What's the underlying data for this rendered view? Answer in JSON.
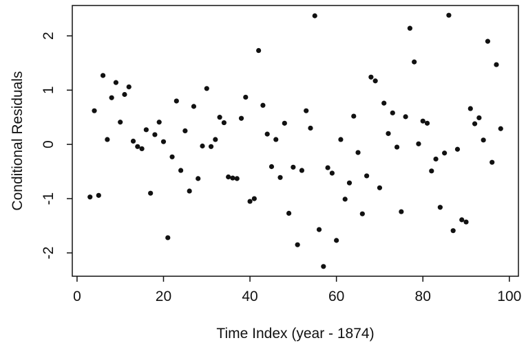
{
  "chart_data": {
    "type": "scatter",
    "xlabel": "Time Index (year - 1874)",
    "ylabel": "Conditional Residuals",
    "xlim": [
      -1.1,
      102.1
    ],
    "ylim": [
      -2.43,
      2.56
    ],
    "xticks": [
      0,
      20,
      40,
      60,
      80,
      100
    ],
    "yticks": [
      -2,
      -1,
      0,
      1,
      2
    ],
    "color": "#111111",
    "x": [
      3,
      4,
      5,
      6,
      7,
      8,
      9,
      10,
      11,
      12,
      13,
      14,
      15,
      16,
      17,
      18,
      19,
      20,
      21,
      22,
      23,
      24,
      25,
      26,
      27,
      28,
      29,
      30,
      31,
      32,
      33,
      34,
      35,
      36,
      37,
      38,
      39,
      40,
      41,
      42,
      43,
      44,
      45,
      46,
      47,
      48,
      49,
      50,
      51,
      52,
      53,
      54,
      55,
      56,
      57,
      58,
      59,
      60,
      61,
      62,
      63,
      64,
      65,
      66,
      67,
      68,
      69,
      70,
      71,
      72,
      73,
      74,
      75,
      76,
      77,
      78,
      79,
      80,
      81,
      82,
      83,
      84,
      85,
      86,
      87,
      88,
      89,
      90,
      91,
      92,
      93,
      94,
      95,
      96,
      97,
      98
    ],
    "values": [
      -0.97,
      0.62,
      -0.94,
      1.27,
      0.09,
      0.86,
      1.14,
      0.41,
      0.92,
      1.06,
      0.06,
      -0.04,
      -0.08,
      0.27,
      -0.9,
      0.18,
      0.41,
      0.05,
      -1.72,
      -0.23,
      0.8,
      -0.48,
      0.25,
      -0.86,
      0.7,
      -0.63,
      -0.03,
      1.03,
      -0.04,
      0.09,
      0.5,
      0.4,
      -0.6,
      -0.62,
      -0.63,
      0.48,
      0.87,
      -1.05,
      -1.0,
      1.73,
      0.72,
      0.19,
      -0.41,
      0.09,
      -0.61,
      0.39,
      -1.27,
      -0.42,
      -1.85,
      -0.48,
      0.62,
      0.3,
      2.37,
      -1.57,
      -2.25,
      -0.43,
      -0.53,
      -1.77,
      0.09,
      -1.01,
      -0.71,
      0.52,
      -0.15,
      -1.28,
      -0.58,
      1.24,
      1.17,
      -0.8,
      0.76,
      0.2,
      0.58,
      -0.05,
      -1.24,
      0.51,
      2.14,
      1.52,
      0.01,
      0.43,
      0.39,
      -0.49,
      -0.27,
      -1.16,
      -0.16,
      2.38,
      -1.59,
      -0.09,
      -1.39,
      -1.43,
      0.66,
      0.38,
      0.49,
      0.08,
      1.9,
      -0.33,
      1.47,
      0.29
    ]
  }
}
